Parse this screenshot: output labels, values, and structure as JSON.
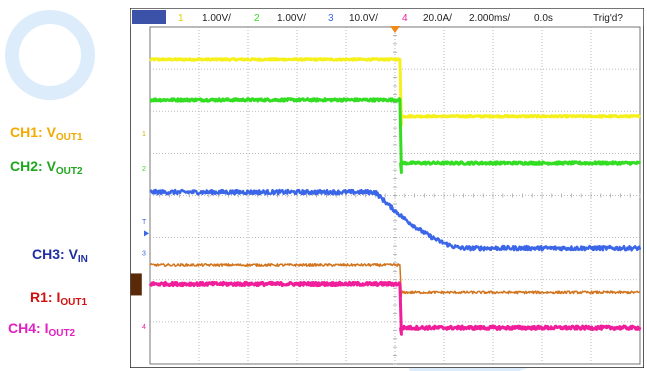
{
  "colors": {
    "ch1": "#f5ef1a",
    "ch2": "#33dd22",
    "ch3": "#3b66e8",
    "r1": "#d2741e",
    "ch4": "#f01e9a",
    "label_ch1": "#f2a900",
    "label_ch2": "#1fa61f",
    "label_ch3": "#1f2fa3",
    "label_r1": "#d01010",
    "label_ch4": "#e020c0",
    "grid": "#a8a8a8",
    "trigger": "#f08a1a",
    "watermark": "#dcecfa"
  },
  "left_labels": [
    {
      "id": "ch1",
      "prefix": "CH1: ",
      "main": "V",
      "sub": "OUT1"
    },
    {
      "id": "ch2",
      "prefix": "CH2: ",
      "main": "V",
      "sub": "OUT2"
    },
    {
      "id": "ch3",
      "prefix": "CH3: ",
      "main": "V",
      "sub": "IN"
    },
    {
      "id": "r1",
      "prefix": "R1: ",
      "main": "I",
      "sub": "OUT1"
    },
    {
      "id": "ch4",
      "prefix": "CH4: ",
      "main": "I",
      "sub": "OUT2"
    }
  ],
  "header": {
    "ch1": {
      "num": "1",
      "scale": "1.00V/"
    },
    "ch2": {
      "num": "2",
      "scale": "1.00V/"
    },
    "ch3": {
      "num": "3",
      "scale": "10.0V/"
    },
    "ch4": {
      "num": "4",
      "scale": "20.0A/"
    },
    "timebase": "2.000ms/",
    "delay": "0.0s",
    "trigger_status": "Trig'd?"
  },
  "markers": {
    "ch1": "1",
    "ch2": "2",
    "ch3": "3",
    "ch4": "4",
    "trigger": "T"
  },
  "chart_data": {
    "type": "line",
    "grid": true,
    "x_divisions": 10,
    "y_divisions": 8,
    "xlim": [
      -10,
      10
    ],
    "x_unit": "ms",
    "ylim_div": [
      -4,
      4
    ],
    "event_time_ms": 0.2,
    "series": [
      {
        "key": "ch1",
        "before_div": 3.23,
        "after_div": 1.88,
        "step": "sharp",
        "noise": 0.02,
        "width": 3
      },
      {
        "key": "ch2",
        "before_div": 2.27,
        "after_div": 0.77,
        "step": "sharp",
        "noise": 0.03,
        "width": 3
      },
      {
        "key": "ch3",
        "before_div": 0.08,
        "after_div": -1.25,
        "step": "ramp",
        "ramp_start_ms": -0.8,
        "ramp_end_ms": 2.8,
        "noise": 0.05,
        "width": 2.5
      },
      {
        "key": "r1",
        "before_div": -1.65,
        "after_div": -2.3,
        "step": "sharp",
        "noise": 0.03,
        "width": 1.5
      },
      {
        "key": "ch4",
        "before_div": -2.1,
        "after_div": -3.14,
        "step": "sharp",
        "noise": 0.04,
        "width": 3
      }
    ]
  }
}
